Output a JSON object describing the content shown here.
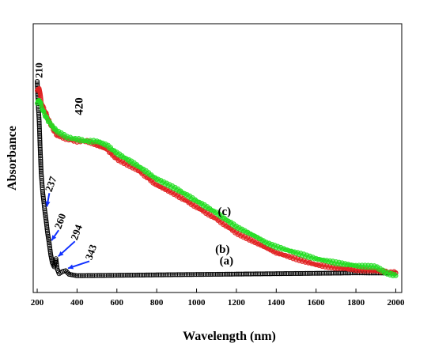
{
  "chart_data": {
    "type": "scatter",
    "title": "",
    "xlabel": "Wavelength (nm)",
    "ylabel": "Absorbance",
    "xlim": [
      180,
      2030
    ],
    "ylim": [
      0,
      1
    ],
    "x_ticks": [
      200,
      400,
      600,
      800,
      1000,
      1200,
      1400,
      1600,
      1800,
      2000
    ],
    "y_ticks_shown": false,
    "grid": false,
    "legend": "none",
    "series": [
      {
        "name": "(a)",
        "color": "#000000",
        "points": [
          [
            200,
            0.98
          ],
          [
            205,
            0.86
          ],
          [
            210,
            0.78
          ],
          [
            215,
            0.64
          ],
          [
            220,
            0.52
          ],
          [
            228,
            0.42
          ],
          [
            235,
            0.36
          ],
          [
            237,
            0.34
          ],
          [
            245,
            0.28
          ],
          [
            252,
            0.22
          ],
          [
            260,
            0.17
          ],
          [
            268,
            0.11
          ],
          [
            276,
            0.07
          ],
          [
            285,
            0.05
          ],
          [
            294,
            0.09
          ],
          [
            300,
            0.04
          ],
          [
            310,
            0.015
          ],
          [
            325,
            0.025
          ],
          [
            343,
            0.03
          ],
          [
            360,
            0.012
          ],
          [
            400,
            0.005
          ],
          [
            600,
            0.007
          ],
          [
            800,
            0.009
          ],
          [
            1000,
            0.011
          ],
          [
            1200,
            0.013
          ],
          [
            1400,
            0.015
          ],
          [
            1600,
            0.017
          ],
          [
            1800,
            0.019
          ],
          [
            2000,
            0.018
          ]
        ]
      },
      {
        "name": "(b)",
        "color": "#e02020",
        "points": [
          [
            200,
            0.93
          ],
          [
            210,
            0.95
          ],
          [
            220,
            0.88
          ],
          [
            230,
            0.85
          ],
          [
            240,
            0.83
          ],
          [
            260,
            0.78
          ],
          [
            280,
            0.74
          ],
          [
            300,
            0.71
          ],
          [
            350,
            0.69
          ],
          [
            400,
            0.68
          ],
          [
            450,
            0.68
          ],
          [
            500,
            0.66
          ],
          [
            550,
            0.64
          ],
          [
            600,
            0.59
          ],
          [
            700,
            0.54
          ],
          [
            800,
            0.46
          ],
          [
            900,
            0.41
          ],
          [
            1000,
            0.35
          ],
          [
            1100,
            0.29
          ],
          [
            1200,
            0.22
          ],
          [
            1300,
            0.17
          ],
          [
            1400,
            0.12
          ],
          [
            1500,
            0.09
          ],
          [
            1600,
            0.06
          ],
          [
            1700,
            0.045
          ],
          [
            1800,
            0.035
          ],
          [
            1900,
            0.03
          ],
          [
            1950,
            0.025
          ],
          [
            2000,
            0.02
          ]
        ]
      },
      {
        "name": "(c)",
        "color": "#22dd22",
        "points": [
          [
            200,
            0.87
          ],
          [
            210,
            0.89
          ],
          [
            220,
            0.86
          ],
          [
            230,
            0.83
          ],
          [
            250,
            0.79
          ],
          [
            280,
            0.75
          ],
          [
            300,
            0.73
          ],
          [
            350,
            0.7
          ],
          [
            400,
            0.69
          ],
          [
            450,
            0.68
          ],
          [
            500,
            0.68
          ],
          [
            550,
            0.66
          ],
          [
            600,
            0.62
          ],
          [
            700,
            0.56
          ],
          [
            800,
            0.49
          ],
          [
            900,
            0.44
          ],
          [
            1000,
            0.38
          ],
          [
            1100,
            0.32
          ],
          [
            1200,
            0.25
          ],
          [
            1300,
            0.2
          ],
          [
            1350,
            0.17
          ],
          [
            1400,
            0.15
          ],
          [
            1500,
            0.12
          ],
          [
            1600,
            0.09
          ],
          [
            1700,
            0.07
          ],
          [
            1800,
            0.055
          ],
          [
            1900,
            0.05
          ],
          [
            1950,
            0.02
          ],
          [
            2000,
            0.005
          ]
        ]
      }
    ],
    "annotations": [
      {
        "text": "210",
        "x": 210,
        "y": 0.98
      },
      {
        "text": "420",
        "x": 420,
        "y": 0.72
      },
      {
        "text": "237",
        "x": 237,
        "y": 0.34
      },
      {
        "text": "260",
        "x": 260,
        "y": 0.17
      },
      {
        "text": "294",
        "x": 294,
        "y": 0.09
      },
      {
        "text": "343",
        "x": 343,
        "y": 0.03
      },
      {
        "text": "(a)",
        "x": 1150,
        "y": 0.03
      },
      {
        "text": "(b)",
        "x": 1130,
        "y": 0.12
      },
      {
        "text": "(c)",
        "x": 1140,
        "y": 0.31
      }
    ]
  }
}
